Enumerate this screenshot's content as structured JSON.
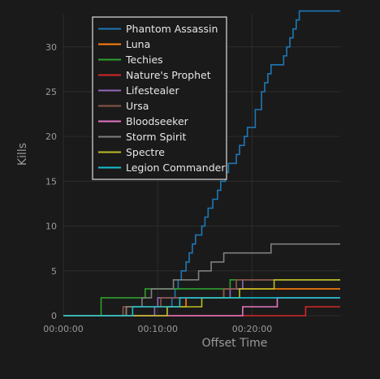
{
  "chart_data": {
    "type": "line",
    "title": "",
    "xlabel": "Offset Time",
    "ylabel": "Kills",
    "xlim": [
      "00:00:00",
      "00:29:20"
    ],
    "ylim": [
      0,
      33.6
    ],
    "x_tick_labels": [
      "00:00:00",
      "00:10:00",
      "00:20:00"
    ],
    "y_tick_labels": [
      "0",
      "5",
      "10",
      "15",
      "20",
      "25",
      "30"
    ],
    "grid": true,
    "legend_position": "top-left",
    "line_style": "step",
    "colors": {
      "background": "#1a1a1a",
      "grid": "#2c2c2c",
      "legend_border": "#cfcfcf",
      "text": "#9a9a9a"
    },
    "series": [
      {
        "name": "Phantom Assassin",
        "color": "#1f77b4",
        "points": [
          [
            "00:00:00",
            0
          ],
          [
            "00:11:00",
            1
          ],
          [
            "00:11:30",
            2
          ],
          [
            "00:11:50",
            3
          ],
          [
            "00:12:10",
            4
          ],
          [
            "00:12:30",
            5
          ],
          [
            "00:13:00",
            6
          ],
          [
            "00:13:20",
            7
          ],
          [
            "00:13:40",
            8
          ],
          [
            "00:14:00",
            9
          ],
          [
            "00:14:40",
            10
          ],
          [
            "00:15:00",
            11
          ],
          [
            "00:15:20",
            12
          ],
          [
            "00:15:50",
            13
          ],
          [
            "00:16:20",
            14
          ],
          [
            "00:16:40",
            15
          ],
          [
            "00:17:10",
            16
          ],
          [
            "00:17:30",
            17
          ],
          [
            "00:18:20",
            18
          ],
          [
            "00:18:40",
            19
          ],
          [
            "00:19:10",
            20
          ],
          [
            "00:19:30",
            21
          ],
          [
            "00:20:20",
            23
          ],
          [
            "00:21:00",
            25
          ],
          [
            "00:21:20",
            26
          ],
          [
            "00:21:40",
            27
          ],
          [
            "00:22:00",
            28
          ],
          [
            "00:23:20",
            29
          ],
          [
            "00:23:40",
            30
          ],
          [
            "00:24:00",
            31
          ],
          [
            "00:24:20",
            32
          ],
          [
            "00:24:40",
            33
          ],
          [
            "00:25:00",
            34
          ],
          [
            "00:29:20",
            34
          ]
        ]
      },
      {
        "name": "Luna",
        "color": "#ff7f0e",
        "points": [
          [
            "00:00:00",
            0
          ],
          [
            "00:06:40",
            1
          ],
          [
            "00:13:00",
            2
          ],
          [
            "00:17:00",
            3
          ],
          [
            "00:29:20",
            3
          ]
        ]
      },
      {
        "name": "Techies",
        "color": "#2ca02c",
        "points": [
          [
            "00:00:00",
            0
          ],
          [
            "00:04:00",
            2
          ],
          [
            "00:08:40",
            3
          ],
          [
            "00:17:40",
            4
          ],
          [
            "00:29:20",
            4
          ]
        ]
      },
      {
        "name": "Nature's Prophet",
        "color": "#d62728",
        "points": [
          [
            "00:00:00",
            0
          ],
          [
            "00:25:40",
            1
          ],
          [
            "00:29:20",
            1
          ]
        ]
      },
      {
        "name": "Lifestealer",
        "color": "#9467bd",
        "points": [
          [
            "00:00:00",
            0
          ],
          [
            "00:09:40",
            1
          ],
          [
            "00:10:00",
            2
          ],
          [
            "00:17:40",
            3
          ],
          [
            "00:19:00",
            4
          ],
          [
            "00:29:20",
            4
          ]
        ]
      },
      {
        "name": "Ursa",
        "color": "#8c564b",
        "points": [
          [
            "00:00:00",
            0
          ],
          [
            "00:06:20",
            1
          ],
          [
            "00:10:20",
            2
          ],
          [
            "00:17:00",
            3
          ],
          [
            "00:18:20",
            4
          ],
          [
            "00:29:20",
            4
          ]
        ]
      },
      {
        "name": "Bloodseeker",
        "color": "#e377c2",
        "points": [
          [
            "00:00:00",
            0
          ],
          [
            "00:19:00",
            1
          ],
          [
            "00:22:40",
            2
          ],
          [
            "00:29:20",
            2
          ]
        ]
      },
      {
        "name": "Storm Spirit",
        "color": "#7f7f7f",
        "points": [
          [
            "00:00:00",
            0
          ],
          [
            "00:06:40",
            1
          ],
          [
            "00:08:20",
            2
          ],
          [
            "00:09:20",
            3
          ],
          [
            "00:11:40",
            4
          ],
          [
            "00:14:20",
            5
          ],
          [
            "00:15:40",
            6
          ],
          [
            "00:17:00",
            7
          ],
          [
            "00:22:00",
            8
          ],
          [
            "00:29:20",
            8
          ]
        ]
      },
      {
        "name": "Spectre",
        "color": "#bcbd22",
        "points": [
          [
            "00:00:00",
            0
          ],
          [
            "00:11:00",
            1
          ],
          [
            "00:14:40",
            2
          ],
          [
            "00:18:40",
            3
          ],
          [
            "00:22:20",
            4
          ],
          [
            "00:29:20",
            4
          ]
        ]
      },
      {
        "name": "Legion Commander",
        "color": "#17becf",
        "points": [
          [
            "00:00:00",
            0
          ],
          [
            "00:07:20",
            1
          ],
          [
            "00:12:20",
            2
          ],
          [
            "00:29:20",
            2
          ]
        ]
      }
    ]
  }
}
